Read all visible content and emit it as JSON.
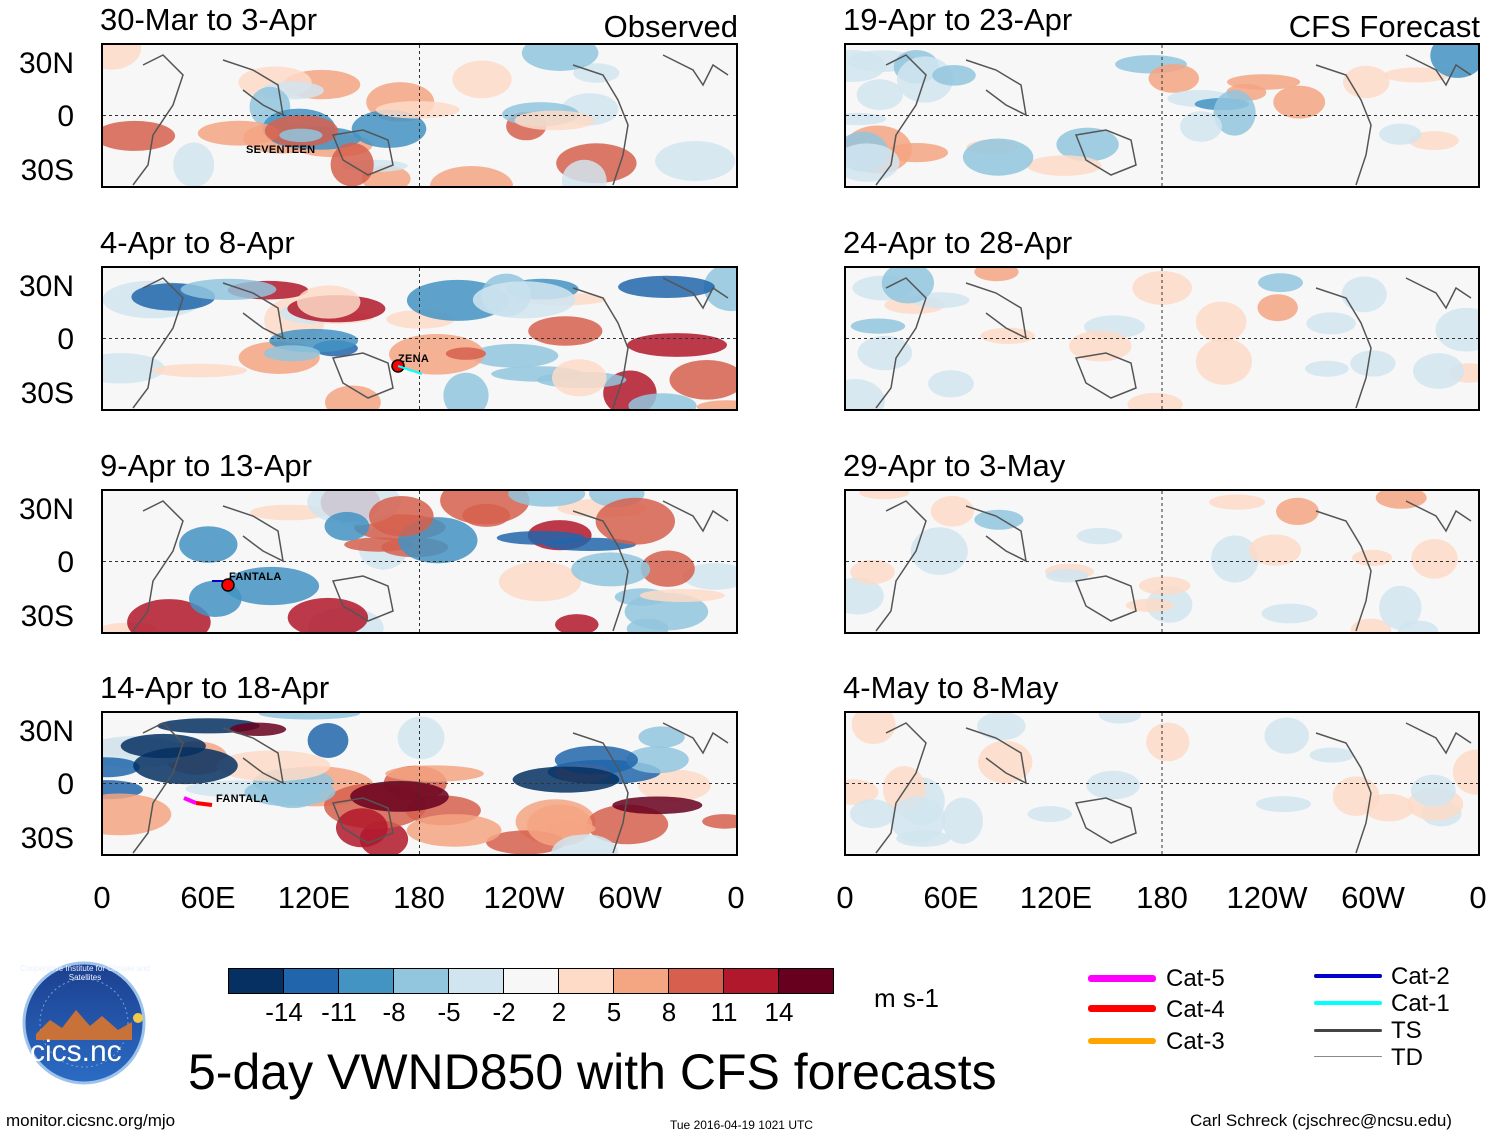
{
  "observed_tag": "Observed",
  "forecast_tag": "CFS Forecast",
  "observed_panels": [
    {
      "title": "30-Mar to 3-Apr",
      "storm": "SEVENTEEN"
    },
    {
      "title": "4-Apr to 8-Apr",
      "storm": "ZENA"
    },
    {
      "title": "9-Apr to 13-Apr",
      "storm": "FANTALA"
    },
    {
      "title": "14-Apr to 18-Apr",
      "storm": "FANTALA"
    }
  ],
  "forecast_panels": [
    {
      "title": "19-Apr to 23-Apr"
    },
    {
      "title": "24-Apr to 28-Apr"
    },
    {
      "title": "29-Apr to 3-May"
    },
    {
      "title": "4-May to 8-May"
    }
  ],
  "lat_labels": [
    "30N",
    "0",
    "30S"
  ],
  "lon_labels": [
    "0",
    "60E",
    "120E",
    "180",
    "120W",
    "60W",
    "0"
  ],
  "colorbar": {
    "ticks": [
      "-14",
      "-11",
      "-8",
      "-5",
      "-2",
      "2",
      "5",
      "8",
      "11",
      "14"
    ],
    "colors": [
      "#053061",
      "#2166ac",
      "#4393c3",
      "#92c5de",
      "#d1e5f0",
      "#f7f7f7",
      "#fddbc7",
      "#f4a582",
      "#d6604d",
      "#b2182b",
      "#67001f"
    ],
    "units": "m s-1"
  },
  "legend": {
    "left": [
      {
        "label": "Cat-5",
        "color": "#ff00ff"
      },
      {
        "label": "Cat-4",
        "color": "#ff0000"
      },
      {
        "label": "Cat-3",
        "color": "#ffa500"
      }
    ],
    "right": [
      {
        "label": "Cat-2",
        "color": "#0000cc"
      },
      {
        "label": "Cat-1",
        "color": "#00ffff"
      },
      {
        "label": "TS",
        "color": "#444444"
      },
      {
        "label": "TD",
        "color": "#888888"
      }
    ]
  },
  "logo_text": "cics.nc",
  "logo_ring_text": "Cooperative Institute for Climate and Satellites",
  "main_title": "5-day VWND850 with CFS forecasts",
  "footer": {
    "left": "monitor.cicsnc.org/mjo",
    "center": "Tue 2016-04-19 1021 UTC",
    "right": "Carl Schreck (cjschrec@ncsu.edu)"
  }
}
